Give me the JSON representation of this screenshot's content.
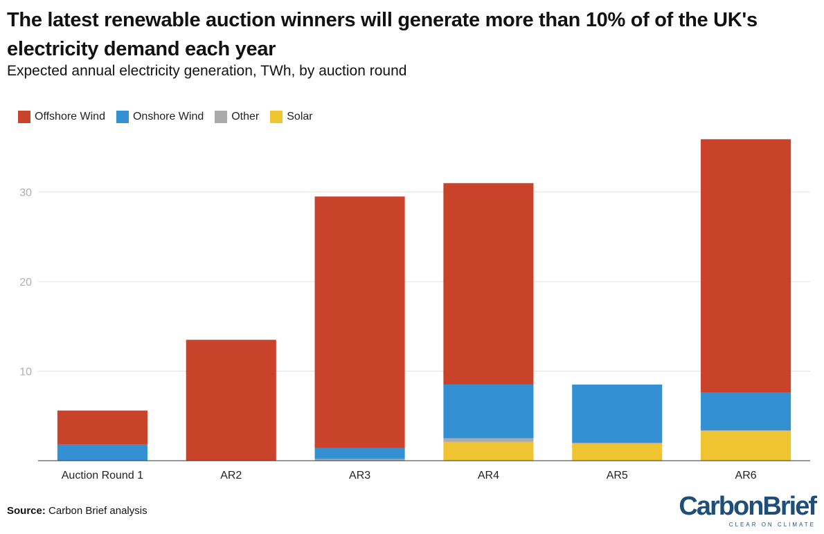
{
  "header": {
    "title": "The latest renewable auction winners will generate more than 10% of of the UK's electricity demand each year",
    "subtitle": "Expected annual electricity generation, TWh, by auction round"
  },
  "footer": {
    "source_label": "Source:",
    "source_text": "Carbon Brief analysis"
  },
  "logo": {
    "wordmark": "CarbonBrief",
    "tagline": "CLEAR ON CLIMATE"
  },
  "chart_data": {
    "type": "bar",
    "stacked": true,
    "categories": [
      "Auction Round 1",
      "AR2",
      "AR3",
      "AR4",
      "AR5",
      "AR6"
    ],
    "series": [
      {
        "name": "Solar",
        "color": "#f0c330",
        "values": [
          0,
          0,
          0,
          2.1,
          1.9,
          3.3
        ]
      },
      {
        "name": "Other",
        "color": "#aaaaaa",
        "values": [
          0,
          0,
          0.2,
          0.4,
          0.1,
          0.1
        ]
      },
      {
        "name": "Onshore Wind",
        "color": "#3390d2",
        "values": [
          1.8,
          0,
          1.2,
          6.0,
          6.5,
          4.2
        ]
      },
      {
        "name": "Offshore Wind",
        "color": "#c9432b",
        "values": [
          3.8,
          13.5,
          28.1,
          22.5,
          0,
          28.3
        ]
      }
    ],
    "legend_order": [
      "Offshore Wind",
      "Onshore Wind",
      "Other",
      "Solar"
    ],
    "ylim": [
      0,
      36
    ],
    "yticks": [
      10,
      20,
      30
    ],
    "grid": true,
    "legend_position": "top-left",
    "xlabel": "",
    "ylabel": ""
  }
}
